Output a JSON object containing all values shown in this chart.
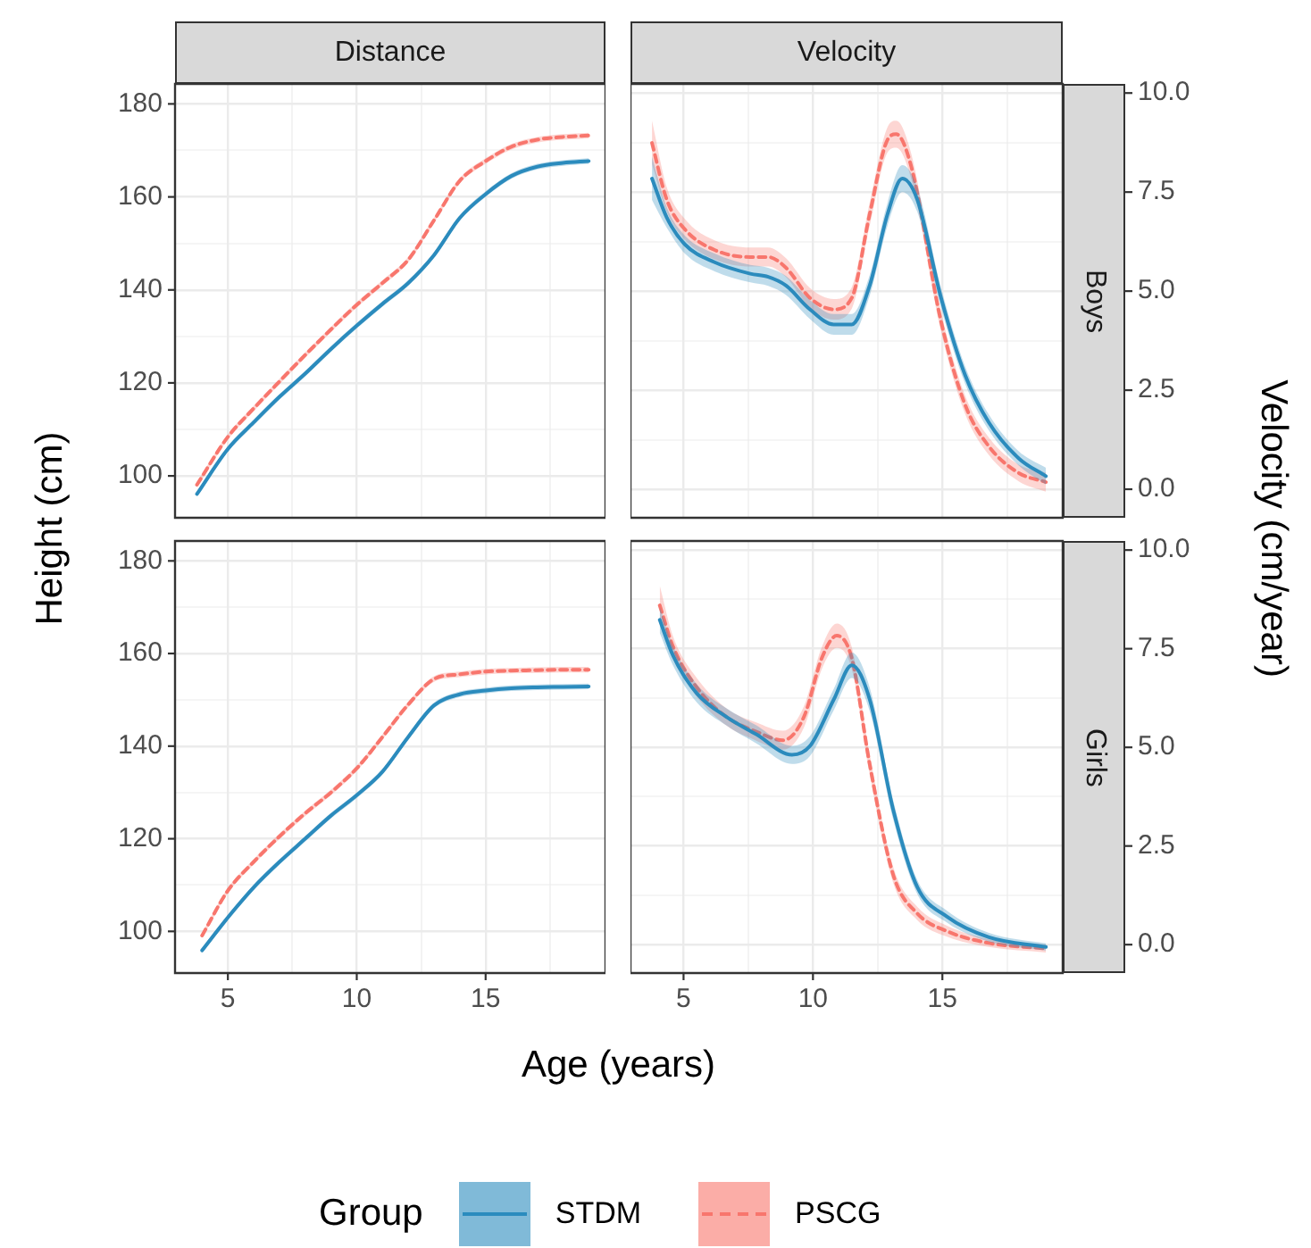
{
  "chart_data": [
    {
      "type": "line",
      "title": "Distance",
      "ylabel": "Height (cm)",
      "legend": "bottom",
      "legend_title": "Group",
      "grid": true,
      "tick_labels": "y",
      "x": [
        3.8,
        5,
        6,
        7,
        8,
        9,
        10,
        11,
        12,
        13,
        14,
        15,
        16,
        17,
        18,
        19
      ],
      "xlim": [
        2.95,
        19.65
      ],
      "xticks": [
        5,
        {
          "value": 7.5,
          "label": null
        },
        10,
        {
          "value": 12.5,
          "label": null
        },
        15,
        {
          "value": 17.5,
          "label": null
        }
      ],
      "ylim": [
        91,
        184.3
      ],
      "yticks": [
        100,
        {
          "value": 110,
          "label": null
        },
        120,
        {
          "value": 130,
          "label": null
        },
        140,
        {
          "value": 150,
          "label": null
        },
        160,
        {
          "value": 170,
          "label": null
        },
        180
      ],
      "series": [
        {
          "name": "STDM",
          "color": "#2b8cbe",
          "line_style": "solid",
          "values": [
            96.1,
            105.8,
            111.5,
            117,
            122,
            127.3,
            132.3,
            137,
            141.5,
            147.5,
            155.5,
            160.6,
            164.5,
            166.5,
            167.3,
            167.7
          ],
          "lower": [
            95.5,
            105.2,
            110.9,
            116.4,
            121.4,
            126.7,
            131.7,
            136.4,
            140.9,
            146.9,
            154.9,
            160,
            163.9,
            165.9,
            166.7,
            167.1
          ],
          "upper": [
            96.7,
            106.4,
            112.1,
            117.6,
            122.6,
            127.9,
            132.9,
            137.6,
            142.1,
            148.1,
            156.1,
            161.2,
            165.1,
            167.1,
            167.9,
            168.3
          ]
        },
        {
          "name": "PSCG",
          "color": "#f8766d",
          "line_style": "dashed",
          "values": [
            98.1,
            108.4,
            114.5,
            120.3,
            126,
            131.5,
            136.8,
            141.5,
            146.5,
            155,
            163.5,
            167.7,
            170.8,
            172.3,
            172.9,
            173.2
          ],
          "lower": [
            97.5,
            107.8,
            113.9,
            119.7,
            125.4,
            130.9,
            136.2,
            140.9,
            145.9,
            154.4,
            162.9,
            167.1,
            170.2,
            171.7,
            172.3,
            172.6
          ],
          "upper": [
            98.7,
            109,
            115.1,
            120.9,
            126.6,
            132.1,
            137.4,
            142.1,
            147.1,
            155.6,
            164.1,
            168.3,
            171.4,
            172.9,
            173.5,
            173.8
          ]
        }
      ]
    },
    {
      "type": "line",
      "title": "Velocity",
      "ylabel": "Velocity (cm/year)",
      "annotations": [
        "Boys"
      ],
      "grid": true,
      "tick_labels": "y",
      "xlim": [
        2.95,
        19.65
      ],
      "xticks": [
        5,
        {
          "value": 7.5,
          "label": null
        },
        10,
        {
          "value": 12.5,
          "label": null
        },
        15,
        {
          "value": 17.5,
          "label": null
        }
      ],
      "ylim": [
        -0.72,
        10.23
      ],
      "yticks": [
        {
          "value": 0,
          "label": "0.0"
        },
        {
          "value": 1.25,
          "label": null
        },
        {
          "value": 2.5,
          "label": "2.5"
        },
        {
          "value": 3.75,
          "label": null
        },
        {
          "value": 5,
          "label": "5.0"
        },
        {
          "value": 6.25,
          "label": null
        },
        {
          "value": 7.5,
          "label": "7.5"
        },
        {
          "value": 8.75,
          "label": null
        },
        {
          "value": 10,
          "label": "10.0"
        }
      ],
      "series": [
        {
          "color": "#2b8cbe",
          "line_style": "solid",
          "x": [
            3.78,
            4.35,
            5.05,
            6.2,
            7.58,
            8.27,
            8.96,
            9.88,
            10.8,
            11.5,
            12.19,
            12.88,
            13.45,
            14.03,
            14.95,
            15.88,
            16.8,
            17.95,
            19
          ],
          "values": [
            7.84,
            6.86,
            6.18,
            5.73,
            5.44,
            5.36,
            5.14,
            4.54,
            4.16,
            4.16,
            5.14,
            6.94,
            7.84,
            7.31,
            4.83,
            2.88,
            1.68,
            0.78,
            0.33
          ],
          "lower": [
            7.3,
            6.6,
            5.95,
            5.5,
            5.22,
            5.13,
            4.9,
            4.3,
            3.9,
            3.9,
            4.88,
            6.65,
            7.5,
            7.0,
            4.58,
            2.66,
            1.48,
            0.6,
            0.12
          ],
          "upper": [
            8.4,
            7.12,
            6.4,
            5.95,
            5.66,
            5.59,
            5.38,
            4.78,
            4.42,
            4.42,
            5.4,
            7.23,
            8.18,
            7.62,
            5.08,
            3.1,
            1.88,
            0.96,
            0.54
          ]
        },
        {
          "color": "#f8766d",
          "line_style": "dashed",
          "x": [
            3.78,
            4.35,
            5.05,
            6.2,
            7.58,
            8.27,
            8.96,
            9.88,
            10.8,
            11.5,
            12.19,
            12.88,
            13.22,
            13.8,
            14.95,
            15.88,
            16.8,
            17.95,
            19
          ],
          "values": [
            8.74,
            7.31,
            6.56,
            6.04,
            5.86,
            5.86,
            5.59,
            4.83,
            4.54,
            4.83,
            6.94,
            8.82,
            8.96,
            8.14,
            4.23,
            2.13,
            1.08,
            0.41,
            0.18
          ],
          "lower": [
            8.2,
            7.0,
            6.3,
            5.8,
            5.62,
            5.62,
            5.35,
            4.58,
            4.28,
            4.56,
            6.65,
            8.5,
            8.62,
            7.82,
            3.98,
            1.9,
            0.86,
            0.2,
            -0.06
          ],
          "upper": [
            9.3,
            7.62,
            6.82,
            6.28,
            6.1,
            6.1,
            5.83,
            5.08,
            4.8,
            5.1,
            7.23,
            9.14,
            9.3,
            8.46,
            4.48,
            2.36,
            1.3,
            0.62,
            0.42
          ]
        }
      ]
    },
    {
      "type": "line",
      "xlabel": "Age (years)",
      "grid": true,
      "x": [
        4,
        5,
        6,
        7,
        8,
        9,
        10,
        11,
        12,
        13,
        14,
        15,
        16,
        17,
        18,
        19
      ],
      "xlim": [
        2.95,
        19.65
      ],
      "xticks": [
        5,
        {
          "value": 7.5,
          "label": null
        },
        10,
        {
          "value": 12.5,
          "label": null
        },
        15,
        {
          "value": 17.5,
          "label": null
        }
      ],
      "ylim": [
        91,
        184.3
      ],
      "yticks": [
        100,
        {
          "value": 110,
          "label": null
        },
        120,
        {
          "value": 130,
          "label": null
        },
        140,
        {
          "value": 150,
          "label": null
        },
        160,
        {
          "value": 170,
          "label": null
        },
        180
      ],
      "series": [
        {
          "color": "#2b8cbe",
          "line_style": "solid",
          "values": [
            95.9,
            103,
            109.5,
            115,
            120,
            125,
            129.4,
            134.5,
            142,
            148.8,
            151.2,
            152,
            152.5,
            152.7,
            152.8,
            152.9
          ],
          "lower": [
            95.3,
            102.4,
            108.9,
            114.4,
            119.4,
            124.4,
            128.8,
            133.9,
            141.4,
            148.2,
            150.6,
            151.4,
            151.9,
            152.1,
            152.2,
            152.3
          ],
          "upper": [
            96.5,
            103.6,
            110.1,
            115.6,
            120.6,
            125.6,
            130,
            135.1,
            142.6,
            149.4,
            151.8,
            152.6,
            153.1,
            153.3,
            153.4,
            153.5
          ]
        },
        {
          "color": "#f8766d",
          "line_style": "dashed",
          "values": [
            99.1,
            108.8,
            115,
            120.5,
            125.5,
            130,
            135.2,
            142,
            149,
            154.5,
            155.5,
            156.1,
            156.3,
            156.4,
            156.5,
            156.5
          ],
          "lower": [
            98.5,
            108.2,
            114.4,
            119.9,
            124.9,
            129.4,
            134.6,
            141.4,
            148.4,
            153.9,
            154.9,
            155.5,
            155.7,
            155.8,
            155.9,
            155.9
          ],
          "upper": [
            99.7,
            109.4,
            115.6,
            121.1,
            126.1,
            130.6,
            135.8,
            142.6,
            149.6,
            155.1,
            156.1,
            156.7,
            156.9,
            157,
            157.1,
            157.1
          ]
        }
      ]
    },
    {
      "type": "line",
      "annotations": [
        "Girls"
      ],
      "grid": true,
      "xlim": [
        2.95,
        19.65
      ],
      "xticks": [
        5,
        {
          "value": 7.5,
          "label": null
        },
        10,
        {
          "value": 12.5,
          "label": null
        },
        15,
        {
          "value": 17.5,
          "label": null
        }
      ],
      "ylim": [
        -0.72,
        10.23
      ],
      "yticks": [
        {
          "value": 0,
          "label": "0.0"
        },
        {
          "value": 1.25,
          "label": null
        },
        {
          "value": 2.5,
          "label": "2.5"
        },
        {
          "value": 3.75,
          "label": null
        },
        {
          "value": 5,
          "label": "5.0"
        },
        {
          "value": 6.25,
          "label": null
        },
        {
          "value": 7.5,
          "label": "7.5"
        },
        {
          "value": 8.75,
          "label": null
        },
        {
          "value": 10,
          "label": "10.0"
        }
      ],
      "series": [
        {
          "color": "#2b8cbe",
          "line_style": "solid",
          "x": [
            4.08,
            4.59,
            5.51,
            6.66,
            7.81,
            9.19,
            9.88,
            10.81,
            11.5,
            12.19,
            13.11,
            14.03,
            15.18,
            16.8,
            19
          ],
          "values": [
            8.23,
            7.33,
            6.37,
            5.77,
            5.33,
            4.81,
            5.03,
            6.22,
            7.08,
            6.22,
            3.39,
            1.46,
            0.71,
            0.19,
            -0.06
          ],
          "lower": [
            7.9,
            7.08,
            6.14,
            5.55,
            5.1,
            4.58,
            4.78,
            5.95,
            6.76,
            5.92,
            3.15,
            1.28,
            0.56,
            0.08,
            -0.15
          ],
          "upper": [
            8.56,
            7.58,
            6.6,
            5.99,
            5.56,
            5.04,
            5.28,
            6.49,
            7.4,
            6.52,
            3.63,
            1.64,
            0.86,
            0.3,
            0.03
          ]
        },
        {
          "color": "#f8766d",
          "line_style": "dashed",
          "x": [
            4.08,
            4.59,
            5.51,
            6.66,
            7.81,
            8.84,
            9.65,
            10.34,
            10.92,
            11.5,
            12.19,
            13.11,
            14.03,
            15.18,
            16.8,
            19
          ],
          "values": [
            8.6,
            7.56,
            6.52,
            5.77,
            5.4,
            5.18,
            5.77,
            7.26,
            7.83,
            7.26,
            4.58,
            1.75,
            0.79,
            0.34,
            0.04,
            -0.1
          ],
          "lower": [
            8.1,
            7.3,
            6.28,
            5.55,
            5.17,
            4.94,
            5.5,
            6.98,
            7.52,
            6.98,
            4.32,
            1.55,
            0.62,
            0.2,
            -0.06,
            -0.2
          ],
          "upper": [
            9.1,
            7.82,
            6.76,
            5.99,
            5.63,
            5.42,
            6.04,
            7.54,
            8.14,
            7.54,
            4.84,
            1.95,
            0.96,
            0.48,
            0.14,
            0.0
          ]
        }
      ]
    }
  ]
}
